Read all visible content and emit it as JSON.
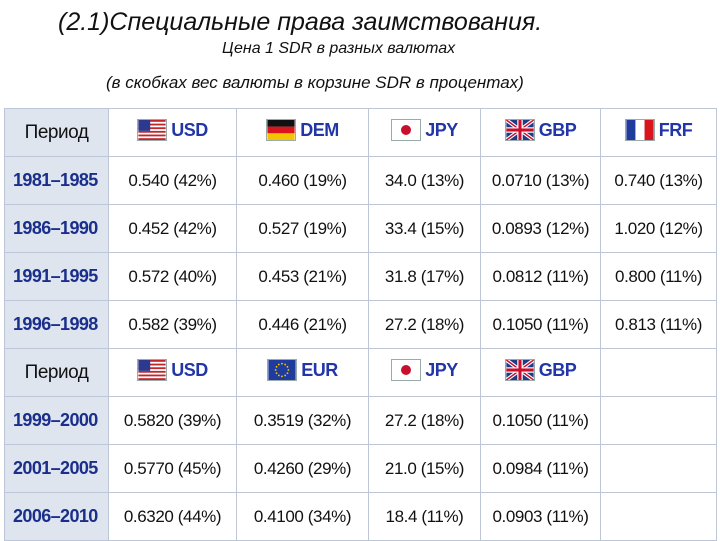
{
  "header": {
    "title": "(2.1)Специальные права заимствования.",
    "subtitle": "Цена 1 SDR в разных валютах",
    "note": "(в скобках вес валюты в корзине SDR в процентах)"
  },
  "table1": {
    "period_label": "Период",
    "currencies": [
      {
        "code": "USD",
        "flag": "us-flag-icon"
      },
      {
        "code": "DEM",
        "flag": "german-flag-icon"
      },
      {
        "code": "JPY",
        "flag": "japan-flag-icon"
      },
      {
        "code": "GBP",
        "flag": "uk-flag-icon"
      },
      {
        "code": "FRF",
        "flag": "france-flag-icon"
      }
    ],
    "rows": [
      {
        "period": "1981–1985",
        "values": [
          "0.540 (42%)",
          "0.460 (19%)",
          "34.0 (13%)",
          "0.0710 (13%)",
          "0.740 (13%)"
        ]
      },
      {
        "period": "1986–1990",
        "values": [
          "0.452 (42%)",
          "0.527 (19%)",
          "33.4 (15%)",
          "0.0893 (12%)",
          "1.020 (12%)"
        ]
      },
      {
        "period": "1991–1995",
        "values": [
          "0.572 (40%)",
          "0.453 (21%)",
          "31.8 (17%)",
          "0.0812 (11%)",
          "0.800 (11%)"
        ]
      },
      {
        "period": "1996–1998",
        "values": [
          "0.582 (39%)",
          "0.446 (21%)",
          "27.2 (18%)",
          "0.1050 (11%)",
          "0.813 (11%)"
        ]
      }
    ]
  },
  "table2": {
    "period_label": "Период",
    "currencies": [
      {
        "code": "USD",
        "flag": "us-flag-icon"
      },
      {
        "code": "EUR",
        "flag": "eu-flag-icon"
      },
      {
        "code": "JPY",
        "flag": "japan-flag-icon"
      },
      {
        "code": "GBP",
        "flag": "uk-flag-icon"
      }
    ],
    "rows": [
      {
        "period": "1999–2000",
        "values": [
          "0.5820 (39%)",
          "0.3519 (32%)",
          "27.2 (18%)",
          "0.1050 (11%)"
        ]
      },
      {
        "period": "2001–2005",
        "values": [
          "0.5770 (45%)",
          "0.4260 (29%)",
          "21.0 (15%)",
          "0.0984 (11%)"
        ]
      },
      {
        "period": "2006–2010",
        "values": [
          "0.6320 (44%)",
          "0.4100 (34%)",
          "18.4 (11%)",
          "0.0903 (11%)"
        ]
      }
    ]
  }
}
